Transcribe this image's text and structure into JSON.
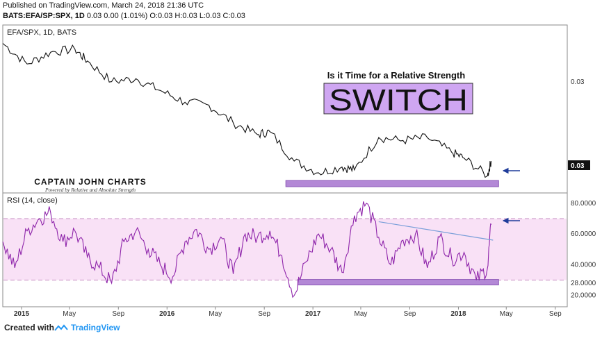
{
  "header": {
    "published": "Published on TradingView.com, March 24, 2018 21:36 UTC",
    "symbol": "BATS:EFA/SP:SPX, 1D",
    "ohlc": "0.03 0.00 (1.01%) O:0.03 H:0.03 L:0.03 C:0.03"
  },
  "footer": {
    "created_with": "Created with",
    "brand": "TradingView"
  },
  "colors": {
    "price_line": "#111111",
    "rsi_line": "#8e24aa",
    "rsi_band": "#f9e1f6",
    "support_box": "#b388d6",
    "switch_box": "#cfa6f2",
    "arrow": "#1f3c9a",
    "trendline": "#7a9fd9"
  },
  "chart_data": [
    {
      "type": "line",
      "legend": "EFA/SPX, 1D, BATS",
      "title": "Is it Time for a Relative Strength",
      "switch_text": "SWITCH",
      "brand_name": "CAPTAIN JOHN CHARTS",
      "brand_tagline": "Powered by Relative and  Absolute Strength",
      "y_tick_labels": [
        "0.03"
      ],
      "last_value_label": "0.03",
      "x_tick_labels": [
        "2015",
        "May",
        "Sep",
        "2016",
        "May",
        "Sep",
        "2017",
        "May",
        "Sep",
        "2018",
        "May",
        "Sep"
      ],
      "x": [
        "2014-11",
        "2015-01",
        "2015-03",
        "2015-05",
        "2015-06",
        "2015-08",
        "2015-10",
        "2015-12",
        "2016-02",
        "2016-04",
        "2016-06",
        "2016-08",
        "2016-09",
        "2016-11",
        "2017-01",
        "2017-03",
        "2017-04",
        "2017-06",
        "2017-08",
        "2017-10",
        "2017-12",
        "2018-01",
        "2018-03",
        "2018-03-24"
      ],
      "values": [
        100,
        93,
        97,
        98,
        94,
        87,
        88,
        84,
        80,
        79,
        73,
        69,
        70,
        60,
        56,
        58,
        57,
        68,
        67,
        68,
        63,
        61,
        55,
        60
      ],
      "value_note": "relative index, earliest visible value = 100",
      "support_zone": [
        "2016-11",
        "2018-03"
      ]
    },
    {
      "type": "line",
      "legend": "RSI (14, close)",
      "y_tick_labels": [
        "80.0000",
        "60.0000",
        "40.0000",
        "28.0000",
        "20.0000"
      ],
      "ylim": [
        14,
        84
      ],
      "band": [
        30,
        70
      ],
      "x": [
        "2014-11",
        "2014-12",
        "2015-01",
        "2015-02",
        "2015-03",
        "2015-04",
        "2015-05",
        "2015-06",
        "2015-07",
        "2015-08",
        "2015-09",
        "2015-10",
        "2015-11",
        "2015-12",
        "2016-01",
        "2016-02",
        "2016-03",
        "2016-04",
        "2016-05",
        "2016-06",
        "2016-07",
        "2016-08",
        "2016-09",
        "2016-10",
        "2016-11",
        "2016-12",
        "2017-01",
        "2017-02",
        "2017-03",
        "2017-04",
        "2017-05",
        "2017-06",
        "2017-07",
        "2017-08",
        "2017-09",
        "2017-10",
        "2017-11",
        "2017-12",
        "2018-01",
        "2018-02",
        "2018-03",
        "2018-03-24"
      ],
      "values": [
        55,
        38,
        62,
        70,
        74,
        55,
        62,
        45,
        38,
        28,
        55,
        62,
        50,
        40,
        32,
        55,
        63,
        50,
        58,
        34,
        60,
        58,
        62,
        46,
        20,
        42,
        60,
        50,
        35,
        72,
        80,
        58,
        40,
        56,
        60,
        38,
        58,
        44,
        48,
        30,
        38,
        66
      ],
      "support_zone": [
        "2016-12",
        "2018-03"
      ],
      "trendline": {
        "start": [
          "2017-06",
          68
        ],
        "end": [
          "2018-03",
          56
        ]
      }
    }
  ]
}
